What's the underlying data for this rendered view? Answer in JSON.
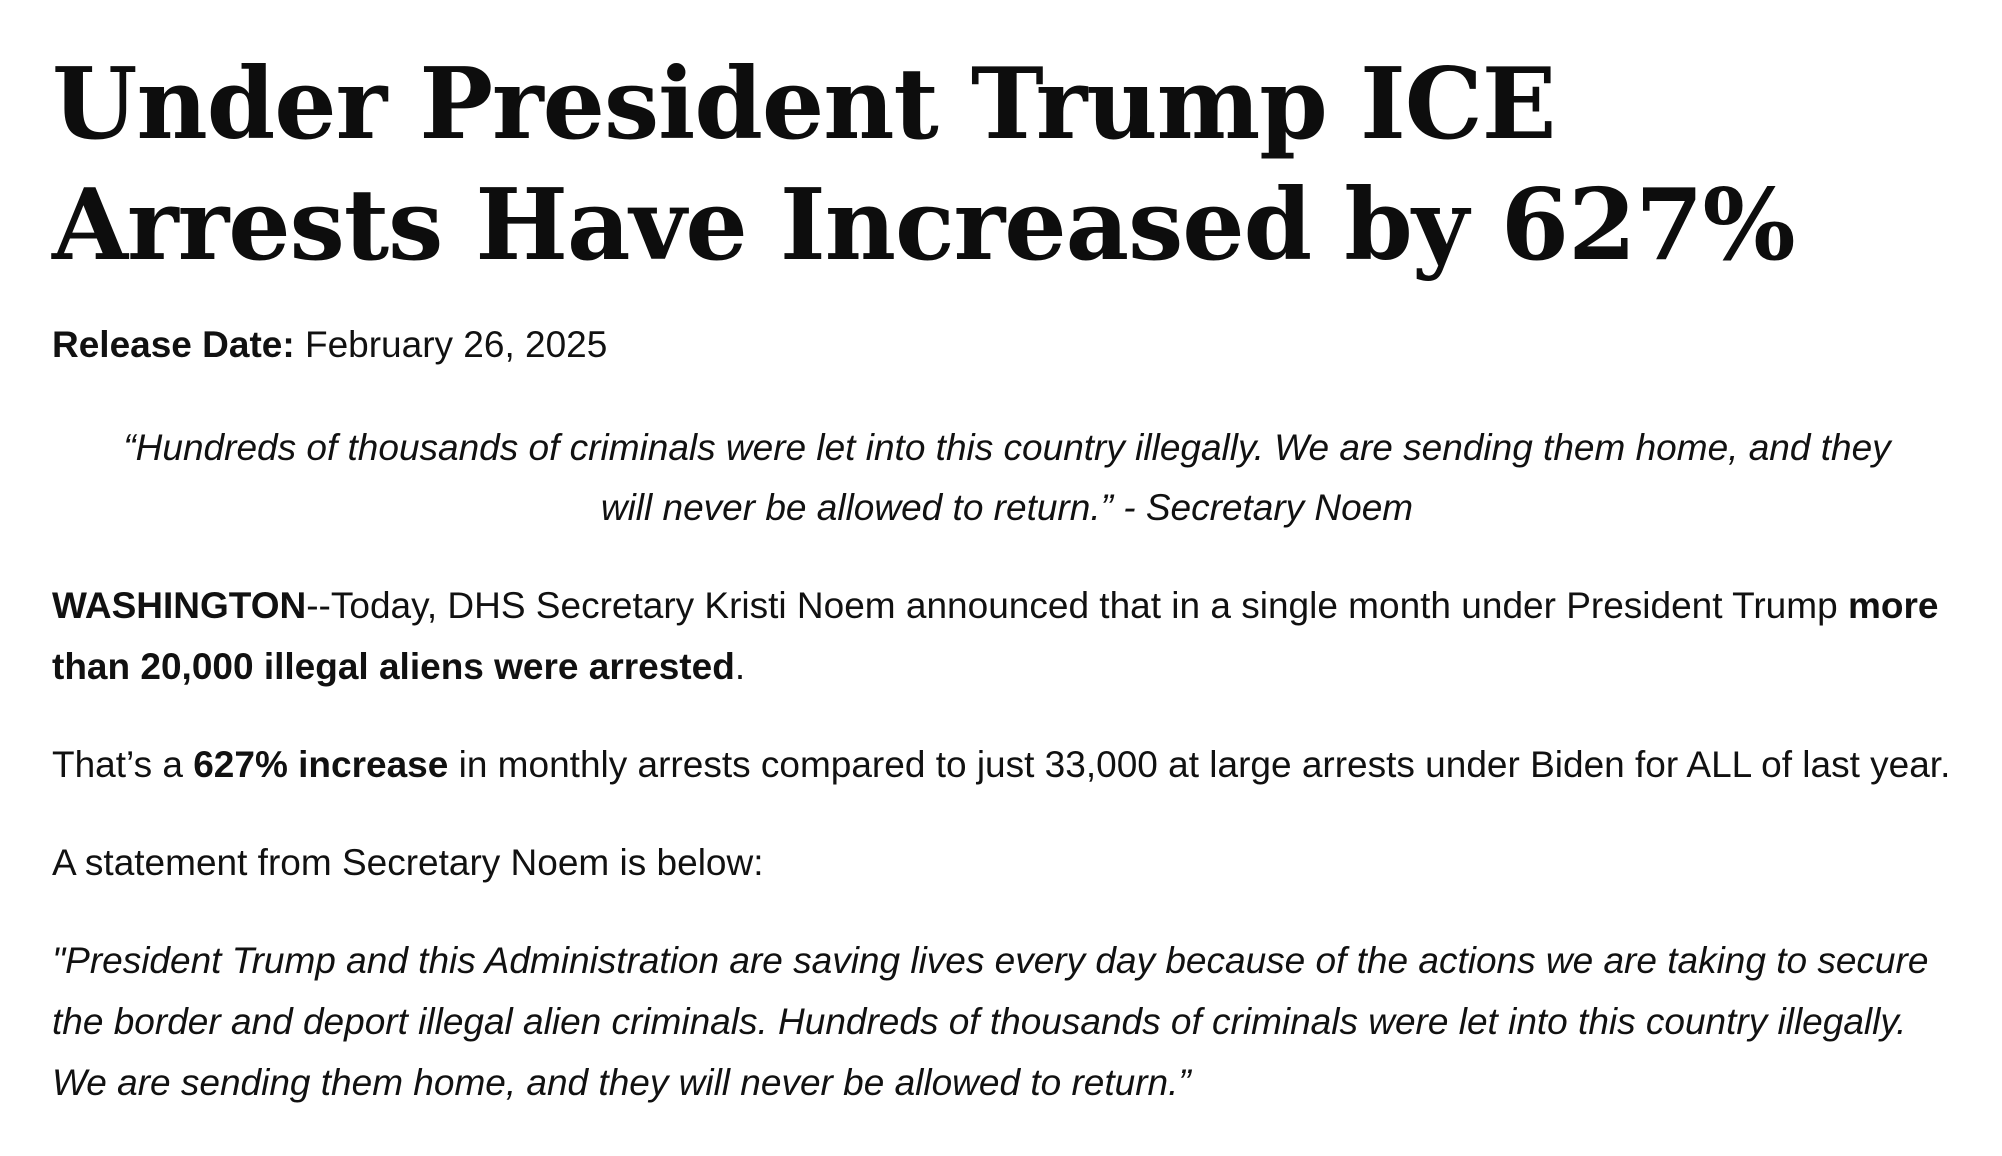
{
  "article": {
    "headline": "Under President Trump ICE Arrests Have Increased by 627%",
    "release_label": "Release Date:",
    "release_date": "February 26, 2025",
    "pull_quote": "“Hundreds of thousands of criminals were let into this country illegally. We are sending them home, and they will never be allowed to return.” - Secretary Noem",
    "para1": {
      "dateline": "WASHINGTON",
      "text": "--Today, DHS Secretary Kristi Noem announced that in a single month under President Trump ",
      "bold": "more than 20,000 illegal aliens were arrested",
      "end": "."
    },
    "para2": {
      "start": "That’s a ",
      "bold": "627% increase",
      "end": " in monthly arrests compared to just 33,000 at large arrests under Biden for ALL of last year."
    },
    "para3": "A statement from Secretary Noem is below:",
    "statement": "\"President Trump and this Administration are saving lives every day because of the actions we are taking to secure the border and deport illegal alien criminals. Hundreds of thousands of criminals were let into this country illegally. We are sending them home, and they will never be allowed to return.”"
  }
}
